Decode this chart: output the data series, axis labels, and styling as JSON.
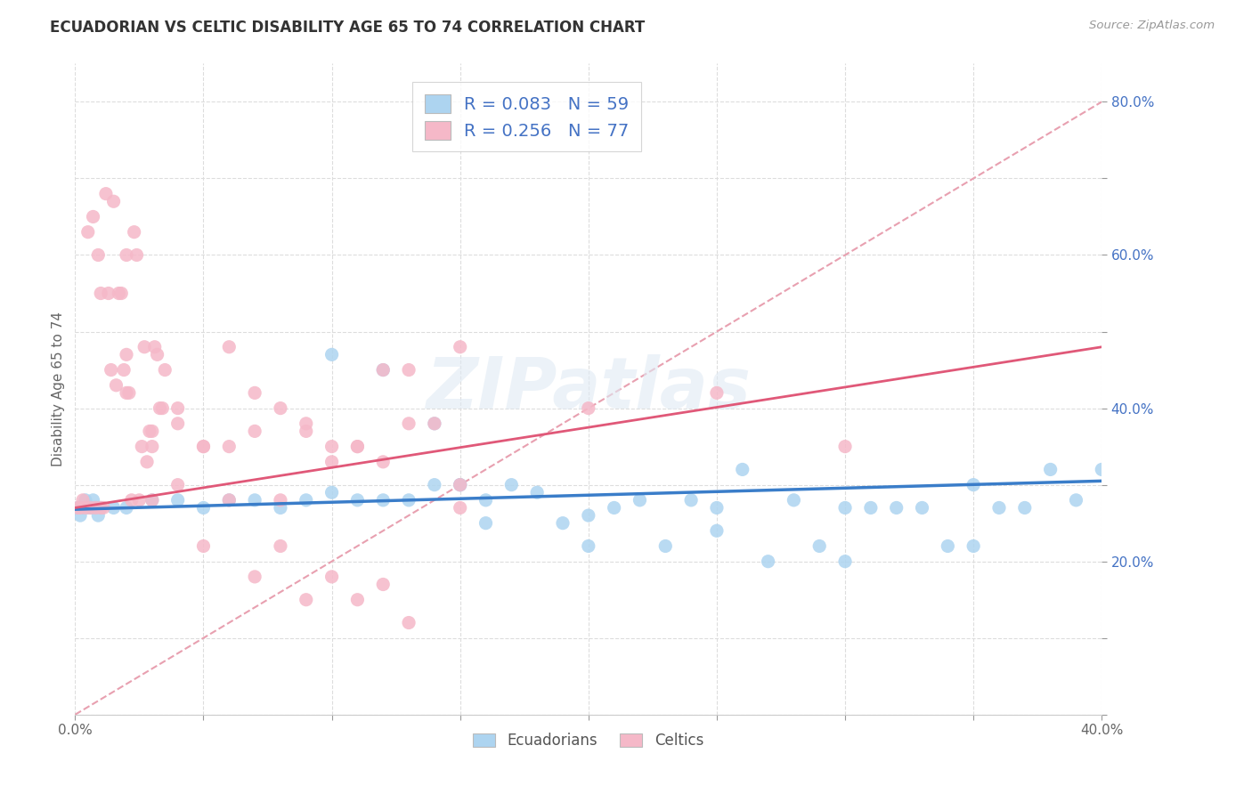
{
  "title": "ECUADORIAN VS CELTIC DISABILITY AGE 65 TO 74 CORRELATION CHART",
  "source_text": "Source: ZipAtlas.com",
  "ylabel": "Disability Age 65 to 74",
  "ecuadorian_color": "#ADD4F0",
  "celtic_color": "#F5B8C8",
  "ecuadorian_line_color": "#3A7DC9",
  "celtic_line_color": "#E05878",
  "diag_line_color": "#E8A0B0",
  "R_ecuadorian": 0.083,
  "N_ecuadorian": 59,
  "R_celtic": 0.256,
  "N_celtic": 77,
  "xlim": [
    0.0,
    0.4
  ],
  "ylim": [
    0.0,
    0.85
  ],
  "ecu_x": [
    0.001,
    0.002,
    0.003,
    0.004,
    0.005,
    0.006,
    0.007,
    0.008,
    0.009,
    0.01,
    0.015,
    0.02,
    0.03,
    0.04,
    0.05,
    0.06,
    0.07,
    0.08,
    0.09,
    0.1,
    0.12,
    0.14,
    0.15,
    0.16,
    0.17,
    0.18,
    0.19,
    0.2,
    0.22,
    0.24,
    0.25,
    0.26,
    0.27,
    0.28,
    0.29,
    0.3,
    0.31,
    0.32,
    0.33,
    0.34,
    0.35,
    0.36,
    0.37,
    0.38,
    0.39,
    0.4,
    0.2,
    0.21,
    0.23,
    0.15,
    0.16,
    0.25,
    0.3,
    0.35,
    0.1,
    0.11,
    0.12,
    0.13,
    0.14
  ],
  "ecu_y": [
    0.27,
    0.26,
    0.27,
    0.28,
    0.27,
    0.27,
    0.28,
    0.27,
    0.26,
    0.27,
    0.27,
    0.27,
    0.28,
    0.28,
    0.27,
    0.28,
    0.28,
    0.27,
    0.28,
    0.29,
    0.28,
    0.3,
    0.3,
    0.28,
    0.3,
    0.29,
    0.25,
    0.26,
    0.28,
    0.28,
    0.27,
    0.32,
    0.2,
    0.28,
    0.22,
    0.27,
    0.27,
    0.27,
    0.27,
    0.22,
    0.3,
    0.27,
    0.27,
    0.32,
    0.28,
    0.32,
    0.22,
    0.27,
    0.22,
    0.3,
    0.25,
    0.24,
    0.2,
    0.22,
    0.47,
    0.28,
    0.45,
    0.28,
    0.38
  ],
  "cel_x": [
    0.001,
    0.002,
    0.003,
    0.004,
    0.005,
    0.006,
    0.007,
    0.008,
    0.009,
    0.01,
    0.011,
    0.012,
    0.013,
    0.014,
    0.015,
    0.016,
    0.017,
    0.018,
    0.019,
    0.02,
    0.021,
    0.022,
    0.023,
    0.024,
    0.025,
    0.026,
    0.027,
    0.028,
    0.029,
    0.03,
    0.031,
    0.032,
    0.033,
    0.034,
    0.035,
    0.04,
    0.05,
    0.06,
    0.07,
    0.08,
    0.09,
    0.1,
    0.11,
    0.12,
    0.13,
    0.14,
    0.15,
    0.02,
    0.03,
    0.04,
    0.06,
    0.08,
    0.1,
    0.12,
    0.15,
    0.2,
    0.25,
    0.3,
    0.05,
    0.07,
    0.09,
    0.11,
    0.13,
    0.15,
    0.01,
    0.02,
    0.03,
    0.04,
    0.05,
    0.06,
    0.07,
    0.08,
    0.09,
    0.1,
    0.11,
    0.12,
    0.13
  ],
  "cel_y": [
    0.27,
    0.27,
    0.28,
    0.27,
    0.63,
    0.27,
    0.65,
    0.27,
    0.6,
    0.27,
    0.27,
    0.68,
    0.55,
    0.45,
    0.67,
    0.43,
    0.55,
    0.55,
    0.45,
    0.42,
    0.42,
    0.28,
    0.63,
    0.6,
    0.28,
    0.35,
    0.48,
    0.33,
    0.37,
    0.37,
    0.48,
    0.47,
    0.4,
    0.4,
    0.45,
    0.4,
    0.35,
    0.48,
    0.42,
    0.28,
    0.37,
    0.33,
    0.35,
    0.33,
    0.45,
    0.38,
    0.3,
    0.6,
    0.28,
    0.38,
    0.35,
    0.4,
    0.35,
    0.45,
    0.48,
    0.4,
    0.42,
    0.35,
    0.35,
    0.37,
    0.38,
    0.35,
    0.38,
    0.27,
    0.55,
    0.47,
    0.35,
    0.3,
    0.22,
    0.28,
    0.18,
    0.22,
    0.15,
    0.18,
    0.15,
    0.17,
    0.12
  ]
}
